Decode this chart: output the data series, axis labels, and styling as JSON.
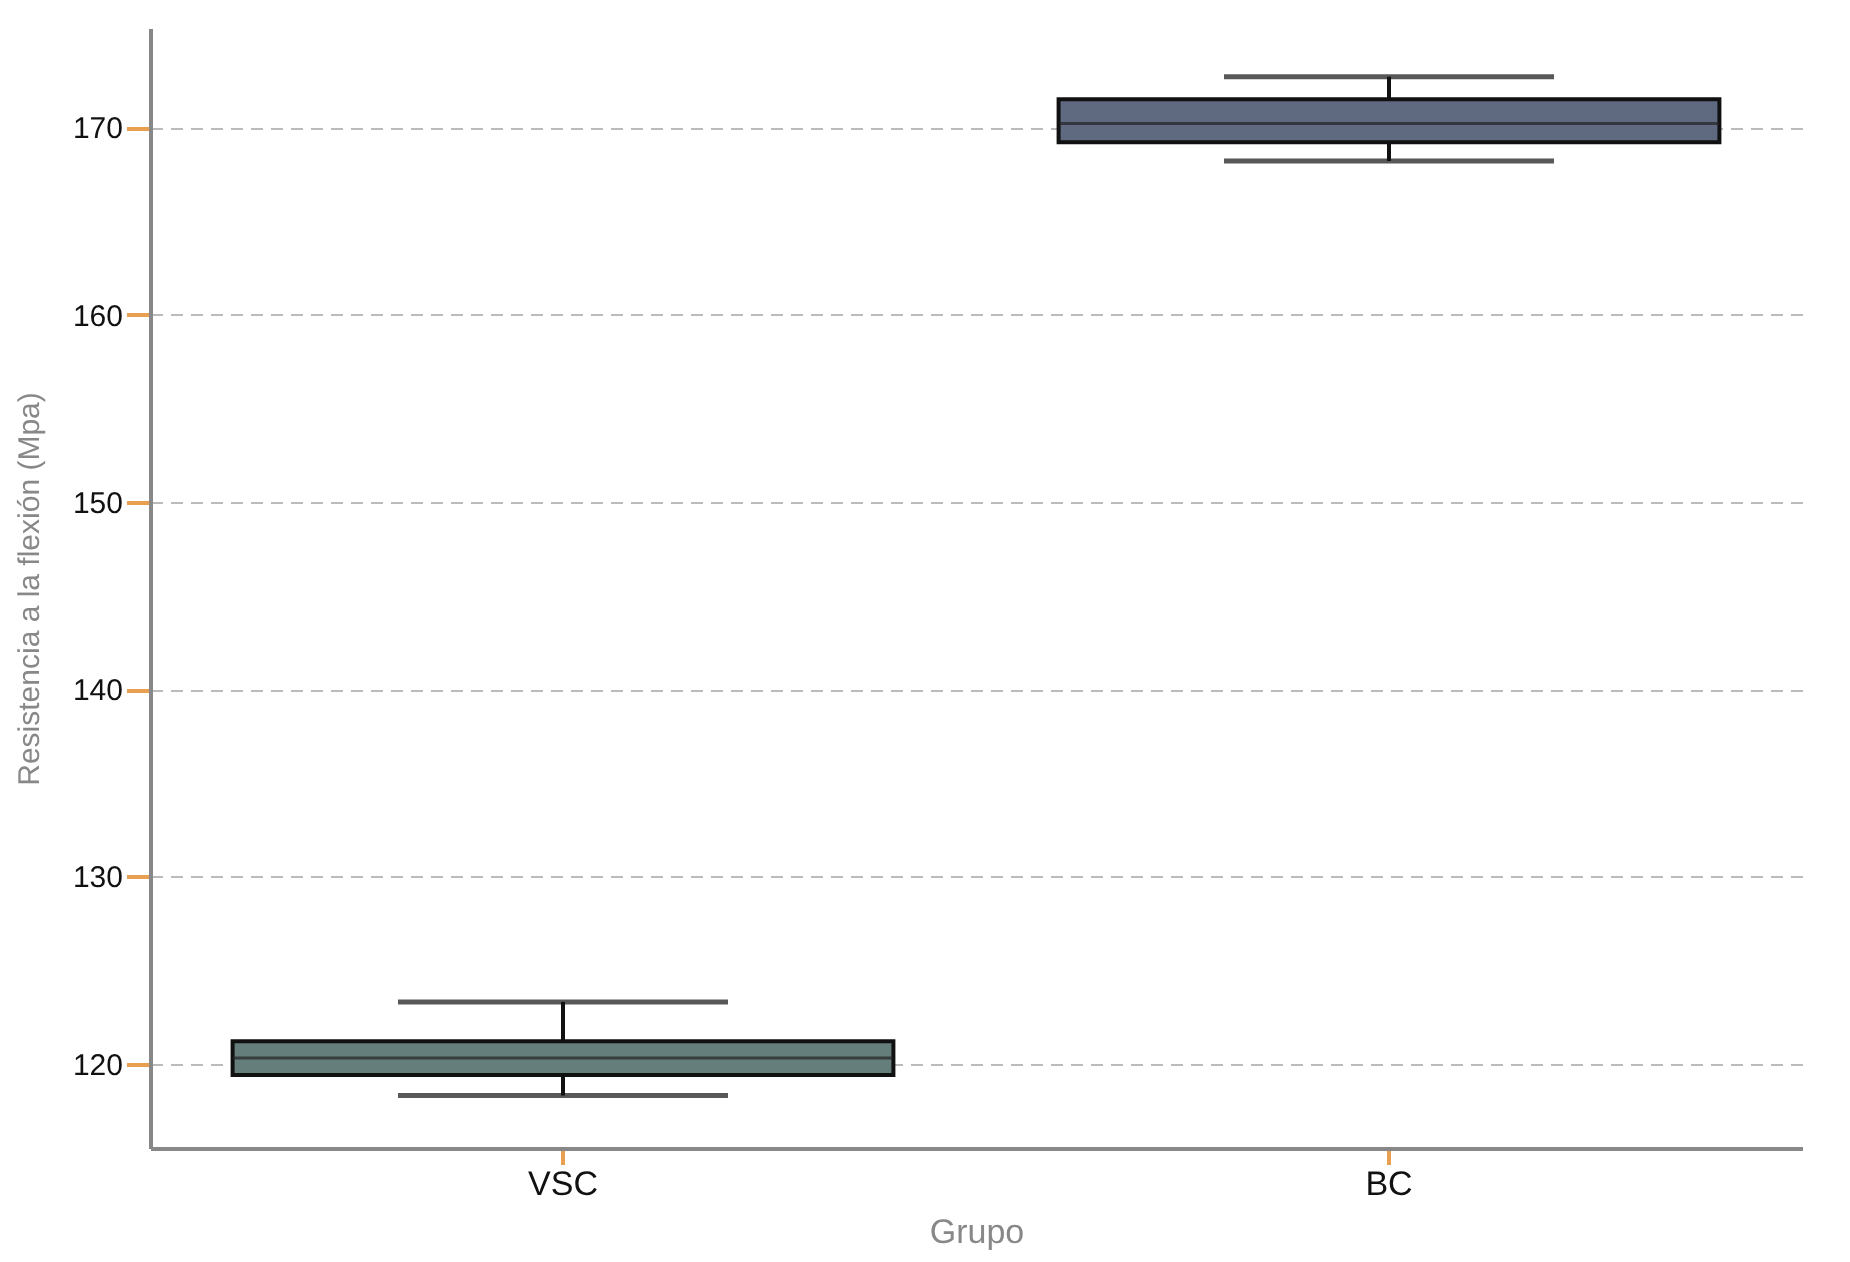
{
  "chart_data": {
    "type": "box",
    "xlabel": "Grupo",
    "ylabel": "Resistencia a la flexión (Mpa)",
    "categories": [
      "VSC",
      "BC"
    ],
    "boxes": [
      {
        "low": 118.3,
        "q1": 119.4,
        "median": 120.3,
        "q3": 121.2,
        "high": 123.3
      },
      {
        "low": 168.2,
        "q1": 169.2,
        "median": 170.2,
        "q3": 171.5,
        "high": 172.7
      }
    ],
    "colors": [
      "#667e7b",
      "#5f6a80"
    ],
    "ylim": [
      115.5,
      175.3
    ],
    "yticks": [
      120,
      130,
      140,
      150,
      160,
      170
    ],
    "grid": "y",
    "legend": false
  }
}
